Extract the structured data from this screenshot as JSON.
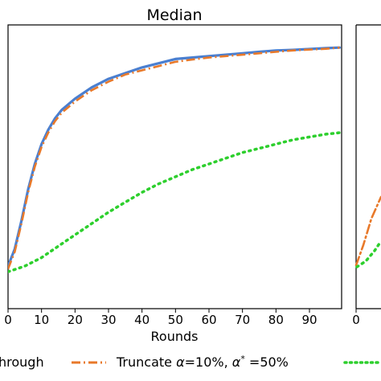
{
  "chart_data": [
    {
      "type": "line",
      "title": "Median",
      "xlabel": "Rounds",
      "ylabel": "",
      "xlim": [
        0,
        99
      ],
      "ylim": [
        0,
        1
      ],
      "x_ticks": [
        "0",
        "10",
        "20",
        "30",
        "40",
        "50",
        "60",
        "70",
        "80",
        "90"
      ],
      "grid": false,
      "series": [
        {
          "name": "",
          "color": "#4a7fd0",
          "style": "solid",
          "x": [
            0,
            2,
            4,
            6,
            8,
            10,
            12,
            14,
            16,
            18,
            20,
            25,
            30,
            35,
            40,
            45,
            50,
            55,
            60,
            65,
            70,
            75,
            80,
            85,
            90,
            95,
            99
          ],
          "values": [
            0.15,
            0.21,
            0.31,
            0.42,
            0.51,
            0.58,
            0.63,
            0.67,
            0.7,
            0.72,
            0.74,
            0.78,
            0.81,
            0.83,
            0.85,
            0.865,
            0.88,
            0.885,
            0.89,
            0.895,
            0.9,
            0.905,
            0.91,
            0.912,
            0.915,
            0.918,
            0.92
          ]
        },
        {
          "name": "Truncate α=10%, α* =50%",
          "color": "#e8792a",
          "style": "dashdot",
          "x": [
            0,
            2,
            4,
            6,
            8,
            10,
            12,
            14,
            16,
            18,
            20,
            25,
            30,
            35,
            40,
            45,
            50,
            55,
            60,
            65,
            70,
            75,
            80,
            85,
            90,
            95,
            99
          ],
          "values": [
            0.14,
            0.2,
            0.3,
            0.41,
            0.5,
            0.57,
            0.62,
            0.66,
            0.69,
            0.71,
            0.73,
            0.77,
            0.8,
            0.825,
            0.84,
            0.855,
            0.87,
            0.878,
            0.885,
            0.89,
            0.895,
            0.9,
            0.905,
            0.91,
            0.913,
            0.916,
            0.92
          ]
        },
        {
          "name": "",
          "color": "#2dcf2d",
          "style": "dotted",
          "x": [
            0,
            5,
            10,
            15,
            20,
            25,
            30,
            35,
            40,
            45,
            50,
            55,
            60,
            65,
            70,
            75,
            80,
            85,
            90,
            95,
            99
          ],
          "values": [
            0.13,
            0.15,
            0.18,
            0.22,
            0.26,
            0.3,
            0.34,
            0.375,
            0.41,
            0.44,
            0.465,
            0.49,
            0.51,
            0.53,
            0.55,
            0.565,
            0.58,
            0.595,
            0.605,
            0.615,
            0.62
          ]
        }
      ]
    }
  ],
  "legend": {
    "placement": "bottom",
    "items": [
      {
        "label": "hrough",
        "color": "#4a7fd0",
        "style": "solid"
      },
      {
        "label": "Truncate α=10%, α* =50%",
        "color": "#e8792a",
        "style": "dashdot"
      },
      {
        "label": "",
        "color": "#2dcf2d",
        "style": "dotted"
      }
    ]
  }
}
